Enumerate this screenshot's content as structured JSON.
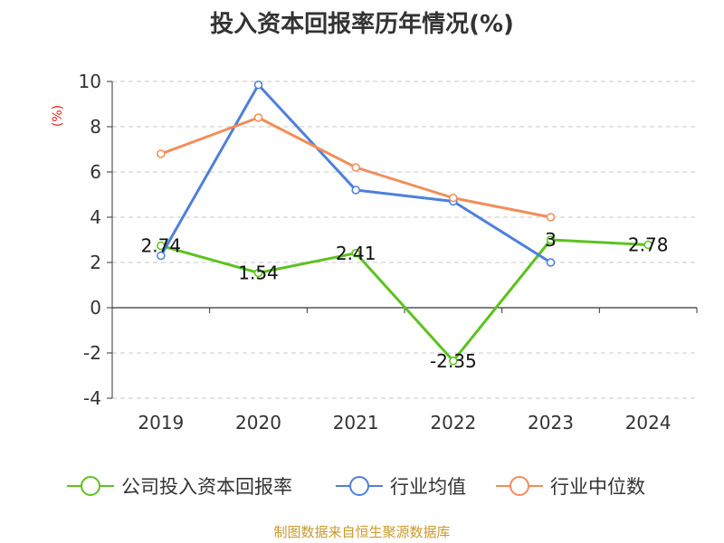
{
  "title": "投入资本回报率历年情况(%)",
  "source": "制图数据来自恒生聚源数据库",
  "chart_data": {
    "type": "line",
    "title": "投入资本回报率历年情况(%)",
    "ylabel": "(%)",
    "xlabel": "",
    "categories": [
      "2019",
      "2020",
      "2021",
      "2022",
      "2023",
      "2024"
    ],
    "ylim": [
      -4,
      10
    ],
    "yticks": [
      10,
      8,
      6,
      4,
      2,
      0,
      -2,
      -4
    ],
    "grid": true,
    "legend_position": "bottom",
    "series": [
      {
        "name": "公司投入资本回报率",
        "color": "#5cc21f",
        "values": [
          2.74,
          1.54,
          2.41,
          -2.35,
          3,
          2.78
        ],
        "labels": [
          "2.74",
          "1.54",
          "2.41",
          "-2.35",
          "3",
          "2.78"
        ]
      },
      {
        "name": "行业均值",
        "color": "#4e7fdb",
        "values": [
          2.3,
          9.85,
          5.2,
          4.7,
          2.0,
          null
        ],
        "labels": []
      },
      {
        "name": "行业中位数",
        "color": "#f28d5a",
        "values": [
          6.8,
          8.4,
          6.2,
          4.85,
          4.0,
          null
        ],
        "labels": []
      }
    ]
  }
}
